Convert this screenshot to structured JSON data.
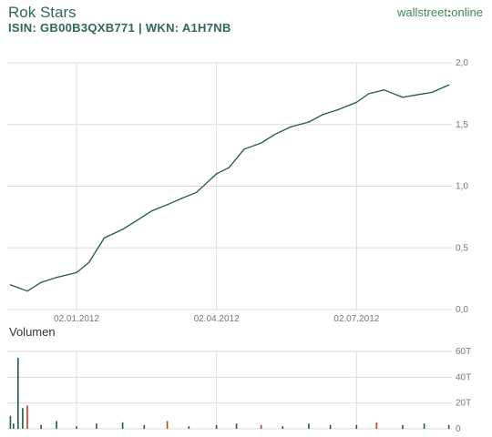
{
  "header": {
    "title": "Rok Stars",
    "subtitle": "ISIN: GB00B3QXB771 | WKN: A1H7NB",
    "logo_left": "wallstreet",
    "logo_sep": ":",
    "logo_right": "online"
  },
  "colors": {
    "line": "#1e5c44",
    "grid": "#dddddd",
    "volume_up": "#1e5c44",
    "volume_down": "#c0392b"
  },
  "chart_data": [
    {
      "type": "line",
      "title": "",
      "xlabel": "",
      "ylabel": "",
      "x_ticks": [
        "02.01.2012",
        "02.04.2012",
        "02.07.2012"
      ],
      "y_ticks": [
        "0,0",
        "0,5",
        "1,0",
        "1,5",
        "2,0"
      ],
      "ylim": [
        0,
        2.0
      ],
      "x": [
        "2011-11-20",
        "2011-12-01",
        "2011-12-10",
        "2011-12-20",
        "2012-01-02",
        "2012-01-10",
        "2012-01-20",
        "2012-02-01",
        "2012-02-10",
        "2012-02-20",
        "2012-03-01",
        "2012-03-10",
        "2012-03-20",
        "2012-04-02",
        "2012-04-10",
        "2012-04-20",
        "2012-05-01",
        "2012-05-10",
        "2012-05-20",
        "2012-06-01",
        "2012-06-10",
        "2012-06-20",
        "2012-07-02",
        "2012-07-10",
        "2012-07-20",
        "2012-08-01",
        "2012-08-10",
        "2012-08-20",
        "2012-08-31"
      ],
      "series": [
        {
          "values": [
            0.2,
            0.15,
            0.22,
            0.26,
            0.3,
            0.38,
            0.58,
            0.65,
            0.72,
            0.8,
            0.85,
            0.9,
            0.95,
            1.1,
            1.15,
            1.3,
            1.35,
            1.42,
            1.48,
            1.52,
            1.58,
            1.62,
            1.68,
            1.75,
            1.78,
            1.72,
            1.74,
            1.76,
            1.82
          ]
        }
      ]
    },
    {
      "type": "bar",
      "title": "Volumen",
      "y_ticks": [
        "0",
        "20T",
        "40T",
        "60T"
      ],
      "ylim": [
        0,
        60
      ],
      "x": [
        "2011-11-20",
        "2011-11-22",
        "2011-11-25",
        "2011-11-28",
        "2011-12-01",
        "2011-12-10",
        "2011-12-20",
        "2012-01-02",
        "2012-01-15",
        "2012-02-01",
        "2012-02-15",
        "2012-03-01",
        "2012-03-15",
        "2012-04-02",
        "2012-04-15",
        "2012-05-01",
        "2012-05-15",
        "2012-06-01",
        "2012-06-15",
        "2012-07-02",
        "2012-07-15",
        "2012-08-01",
        "2012-08-15",
        "2012-08-31"
      ],
      "values": [
        10,
        4,
        55,
        16,
        18,
        3,
        6,
        2,
        4,
        5,
        3,
        6,
        2,
        3,
        4,
        3,
        2,
        4,
        3,
        3,
        5,
        3,
        4,
        3
      ],
      "down": [
        false,
        false,
        false,
        false,
        true,
        false,
        false,
        false,
        false,
        false,
        false,
        true,
        false,
        false,
        false,
        true,
        false,
        false,
        false,
        false,
        true,
        false,
        false,
        false
      ]
    }
  ]
}
